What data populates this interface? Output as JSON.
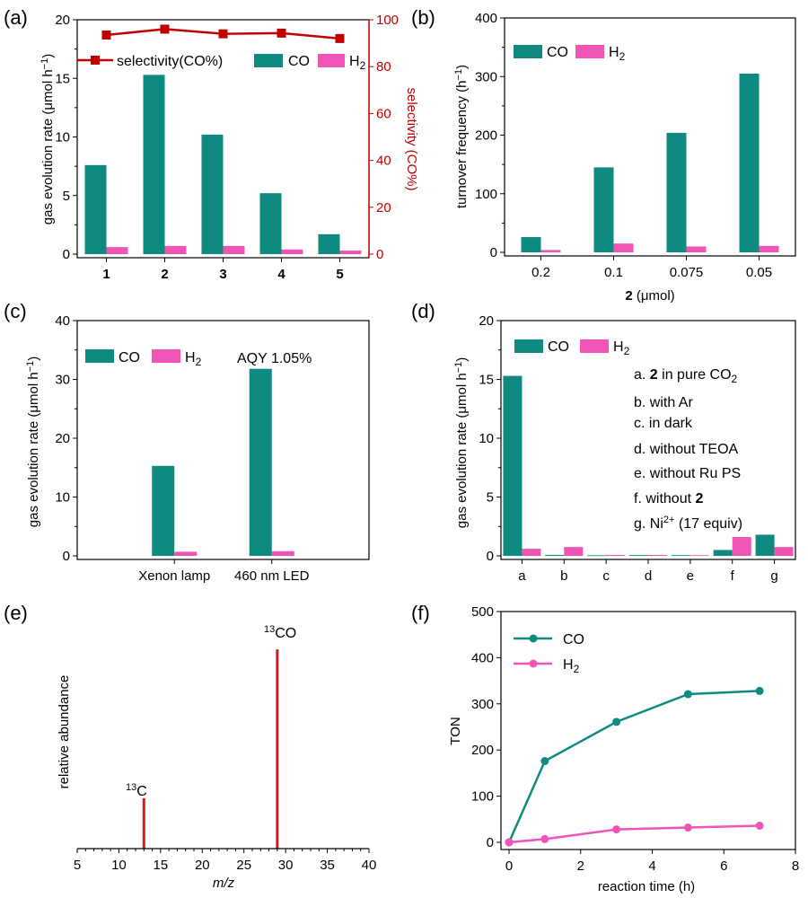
{
  "colors": {
    "co": "#0f8a80",
    "h2": "#f054b4",
    "sel": "#c00000",
    "ms": "#d7191c"
  },
  "panels": {
    "a": {
      "letter": "(a)",
      "ylabel_main": "gas evolution rate (μmol h",
      "ylabel_sup": "−1",
      "ylabel_end": ")",
      "y2label": "selectivity (CO%)",
      "legend": {
        "sel": "selectivity(CO%)",
        "co": "CO",
        "h2_main": "H",
        "h2_sub": "2"
      }
    },
    "b": {
      "letter": "(b)",
      "ylabel_main": "turnover frequency (h",
      "ylabel_sup": "−1",
      "ylabel_end": ")",
      "xlabel_bold": "2",
      "xlabel_rest": " (μmol)",
      "legend": {
        "co": "CO",
        "h2_main": "H",
        "h2_sub": "2"
      }
    },
    "c": {
      "letter": "(c)",
      "ylabel_main": "gas evolution rate (μmol h",
      "ylabel_sup": "−1",
      "ylabel_end": ")",
      "annotation": "AQY 1.05%",
      "legend": {
        "co": "CO",
        "h2_main": "H",
        "h2_sub": "2"
      }
    },
    "d": {
      "letter": "(d)",
      "ylabel_main": "gas evolution rate (μmol h",
      "ylabel_sup": "−1",
      "ylabel_end": ")",
      "legend": {
        "co": "CO",
        "h2_main": "H",
        "h2_sub": "2"
      },
      "notes": {
        "a_pre": "a. ",
        "a_bold": "2",
        "a_mid": " in pure CO",
        "a_sub": "2",
        "b": "b. with Ar",
        "c": "c. in dark",
        "d": "d. without TEOA",
        "e": "e. without Ru PS",
        "f_pre": "f.  without ",
        "f_bold": "2",
        "g_pre": "g. Ni",
        "g_sup": "2+",
        "g_post": " (17 equiv)"
      }
    },
    "e": {
      "letter": "(e)",
      "ylabel": "relative abundance",
      "xlabel": "m/z",
      "labels": {
        "c13_sup": "13",
        "c13_main": "C",
        "co13_sup": "13",
        "co13_main": "CO"
      }
    },
    "f": {
      "letter": "(f)",
      "ylabel": "TON",
      "xlabel": "reaction time (h)",
      "legend": {
        "co": "CO",
        "h2_main": "H",
        "h2_sub": "2"
      }
    }
  },
  "chart_data": [
    {
      "id": "a",
      "type": "bar",
      "categories": [
        "1",
        "2",
        "3",
        "4",
        "5"
      ],
      "series": [
        {
          "name": "CO",
          "values": [
            7.6,
            15.3,
            10.2,
            5.2,
            1.7
          ]
        },
        {
          "name": "H2",
          "values": [
            0.6,
            0.7,
            0.7,
            0.4,
            0.3
          ]
        }
      ],
      "ylim": [
        0,
        20
      ],
      "yticks": [
        0,
        5,
        10,
        15,
        20
      ],
      "secondary": {
        "name": "selectivity(CO%)",
        "type": "line",
        "values": [
          93.5,
          96.0,
          94.0,
          94.3,
          92.0
        ],
        "ylim": [
          0,
          100
        ],
        "yticks": [
          0,
          20,
          40,
          60,
          80,
          100
        ]
      }
    },
    {
      "id": "b",
      "type": "bar",
      "categories": [
        "0.2",
        "0.1",
        "0.075",
        "0.05"
      ],
      "series": [
        {
          "name": "CO",
          "values": [
            26,
            145,
            204,
            305
          ]
        },
        {
          "name": "H2",
          "values": [
            4,
            15,
            10,
            11
          ]
        }
      ],
      "ylim": [
        0,
        400
      ],
      "yticks": [
        0,
        100,
        200,
        300,
        400
      ]
    },
    {
      "id": "c",
      "type": "bar",
      "categories": [
        "Xenon lamp",
        "460 nm LED"
      ],
      "series": [
        {
          "name": "CO",
          "values": [
            15.3,
            31.8
          ]
        },
        {
          "name": "H2",
          "values": [
            0.7,
            0.8
          ]
        }
      ],
      "ylim": [
        0,
        40
      ],
      "yticks": [
        0,
        10,
        20,
        30,
        40
      ]
    },
    {
      "id": "d",
      "type": "bar",
      "categories": [
        "a",
        "b",
        "c",
        "d",
        "e",
        "f",
        "g"
      ],
      "series": [
        {
          "name": "CO",
          "values": [
            15.3,
            0.08,
            0.05,
            0.07,
            0.06,
            0.5,
            1.8
          ]
        },
        {
          "name": "H2",
          "values": [
            0.6,
            0.75,
            0.08,
            0.08,
            0.06,
            1.6,
            0.75
          ]
        }
      ],
      "ylim": [
        0,
        20
      ],
      "yticks": [
        0,
        5,
        10,
        15,
        20
      ]
    },
    {
      "id": "e",
      "type": "bar",
      "categories": [
        "13C",
        "13CO"
      ],
      "x": [
        13,
        29
      ],
      "values": [
        0.22,
        0.87
      ],
      "xlim": [
        5,
        40
      ],
      "xticks": [
        5,
        10,
        15,
        20,
        25,
        30,
        35,
        40
      ]
    },
    {
      "id": "f",
      "type": "line",
      "x": [
        0,
        1,
        3,
        5,
        7
      ],
      "series": [
        {
          "name": "CO",
          "values": [
            0,
            176,
            261,
            321,
            328
          ]
        },
        {
          "name": "H2",
          "values": [
            0,
            7,
            28,
            32,
            36
          ]
        }
      ],
      "xlim": [
        0,
        8
      ],
      "xticks": [
        0,
        2,
        4,
        6,
        8
      ],
      "ylim": [
        0,
        500
      ],
      "yticks": [
        0,
        100,
        200,
        300,
        400,
        500
      ]
    }
  ]
}
